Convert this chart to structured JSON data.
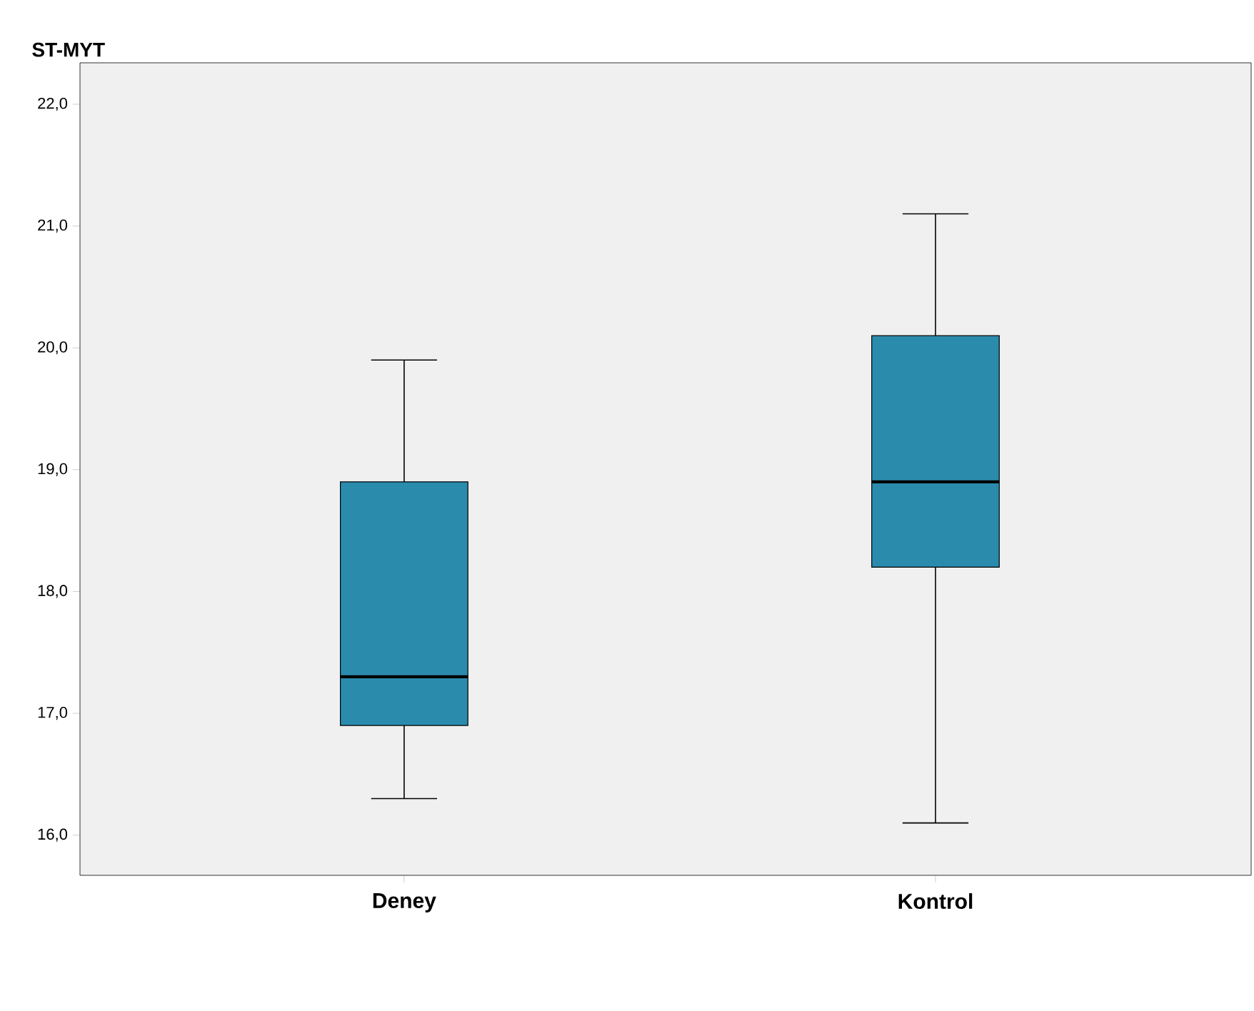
{
  "chart_data": {
    "type": "box",
    "title": "ST-MYT",
    "categories": [
      "Deney",
      "Kontrol"
    ],
    "boxes": [
      {
        "low": 16.3,
        "q1": 16.9,
        "median": 17.3,
        "q3": 18.9,
        "high": 19.9
      },
      {
        "low": 16.1,
        "q1": 18.2,
        "median": 18.9,
        "q3": 20.1,
        "high": 21.1
      }
    ],
    "color": "#2b8bad",
    "ylim": [
      15.67,
      22.34
    ],
    "yticks": [
      {
        "value": 16,
        "label": "16,0"
      },
      {
        "value": 17,
        "label": "17,0"
      },
      {
        "value": 18,
        "label": "18,0"
      },
      {
        "value": 19,
        "label": "19,0"
      },
      {
        "value": 20,
        "label": "20,0"
      },
      {
        "value": 21,
        "label": "21,0"
      },
      {
        "value": 22,
        "label": "22,0"
      }
    ]
  }
}
